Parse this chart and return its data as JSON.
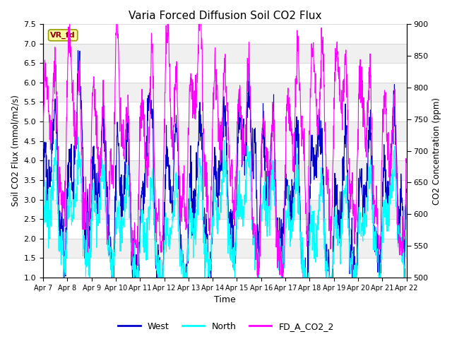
{
  "title": "Varia Forced Diffusion Soil CO2 Flux",
  "xlabel": "Time",
  "ylabel_left": "Soil CO2 Flux (mmol/m2/s)",
  "ylabel_right": "CO2 Concentration (ppm)",
  "ylim_left": [
    1.0,
    7.5
  ],
  "ylim_right": [
    500,
    900
  ],
  "xtick_labels": [
    "Apr 7",
    "Apr 8",
    "Apr 9",
    "Apr 10",
    "Apr 11",
    "Apr 12",
    "Apr 13",
    "Apr 14",
    "Apr 15",
    "Apr 16",
    "Apr 17",
    "Apr 18",
    "Apr 19",
    "Apr 20",
    "Apr 21",
    "Apr 22"
  ],
  "color_west": "#0000CD",
  "color_north": "#00FFFF",
  "color_fd": "#FF00FF",
  "legend_label_west": "West",
  "legend_label_north": "North",
  "legend_label_fd": "FD_A_CO2_2",
  "annotation_text": "VR_fd",
  "bg_band1_lo": 6.5,
  "bg_band1_hi": 7.5,
  "bg_band2_lo": 3.5,
  "bg_band2_hi": 5.5,
  "bg_color": "#DCDCDC",
  "linewidth": 0.8,
  "title_fontsize": 11,
  "yticks_left": [
    1.0,
    1.5,
    2.0,
    2.5,
    3.0,
    3.5,
    4.0,
    4.5,
    5.0,
    5.5,
    6.0,
    6.5,
    7.0,
    7.5
  ],
  "yticks_right": [
    500,
    550,
    600,
    650,
    700,
    750,
    800,
    850,
    900
  ]
}
